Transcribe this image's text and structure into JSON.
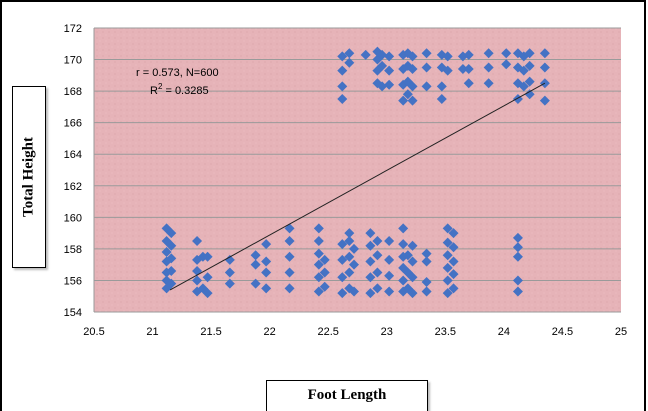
{
  "chart_data": {
    "type": "scatter",
    "xlabel": "Foot Length",
    "ylabel": "Total Height",
    "xlim": [
      20.5,
      25
    ],
    "ylim": [
      154,
      172
    ],
    "xticks": [
      "20.5",
      "21",
      "21.5",
      "22",
      "22.5",
      "23",
      "23.5",
      "24",
      "24.5",
      "25"
    ],
    "yticks": [
      "154",
      "156",
      "158",
      "160",
      "162",
      "164",
      "166",
      "168",
      "170",
      "172"
    ],
    "grid": "horizontal",
    "marker_color": "#4472c4",
    "plot_background": "#e6b3b8",
    "annotation_line1": "r = 0.573, N=600",
    "annotation_line2_prefix": "R",
    "annotation_line2_sup": "2",
    "annotation_line2_suffix": " = 0.3285",
    "trendline": {
      "x": [
        21.15,
        24.35
      ],
      "y": [
        155.4,
        168.5
      ]
    },
    "series": [
      {
        "points": [
          [
            21.12,
            155.5
          ],
          [
            21.12,
            156.0
          ],
          [
            21.12,
            156.5
          ],
          [
            21.12,
            157.2
          ],
          [
            21.12,
            157.8
          ],
          [
            21.12,
            158.5
          ],
          [
            21.12,
            159.3
          ],
          [
            21.16,
            155.8
          ],
          [
            21.16,
            156.6
          ],
          [
            21.16,
            157.4
          ],
          [
            21.16,
            158.2
          ],
          [
            21.16,
            159.0
          ],
          [
            21.38,
            155.3
          ],
          [
            21.38,
            156.0
          ],
          [
            21.38,
            156.6
          ],
          [
            21.38,
            157.3
          ],
          [
            21.38,
            158.5
          ],
          [
            21.43,
            155.5
          ],
          [
            21.43,
            157.5
          ],
          [
            21.47,
            155.2
          ],
          [
            21.47,
            156.2
          ],
          [
            21.47,
            157.5
          ],
          [
            21.66,
            155.8
          ],
          [
            21.66,
            156.5
          ],
          [
            21.66,
            157.3
          ],
          [
            21.88,
            155.8
          ],
          [
            21.88,
            157.0
          ],
          [
            21.88,
            157.6
          ],
          [
            21.97,
            155.5
          ],
          [
            21.97,
            156.5
          ],
          [
            21.97,
            157.2
          ],
          [
            21.97,
            158.3
          ],
          [
            22.17,
            155.5
          ],
          [
            22.17,
            156.5
          ],
          [
            22.17,
            157.5
          ],
          [
            22.17,
            158.5
          ],
          [
            22.17,
            159.3
          ],
          [
            22.42,
            155.3
          ],
          [
            22.42,
            156.2
          ],
          [
            22.42,
            157.0
          ],
          [
            22.42,
            157.7
          ],
          [
            22.42,
            158.5
          ],
          [
            22.42,
            159.3
          ],
          [
            22.47,
            155.6
          ],
          [
            22.47,
            156.5
          ],
          [
            22.47,
            157.3
          ],
          [
            22.62,
            155.2
          ],
          [
            22.62,
            156.2
          ],
          [
            22.62,
            157.3
          ],
          [
            22.62,
            158.3
          ],
          [
            22.68,
            155.5
          ],
          [
            22.68,
            156.5
          ],
          [
            22.68,
            157.5
          ],
          [
            22.68,
            158.5
          ],
          [
            22.68,
            159.0
          ],
          [
            22.72,
            155.3
          ],
          [
            22.72,
            157.0
          ],
          [
            22.72,
            158.0
          ],
          [
            22.86,
            155.2
          ],
          [
            22.86,
            156.2
          ],
          [
            22.86,
            157.2
          ],
          [
            22.86,
            158.2
          ],
          [
            22.86,
            159.0
          ],
          [
            22.92,
            155.5
          ],
          [
            22.92,
            156.5
          ],
          [
            22.92,
            157.6
          ],
          [
            22.92,
            158.5
          ],
          [
            23.02,
            155.3
          ],
          [
            23.02,
            156.3
          ],
          [
            23.02,
            157.3
          ],
          [
            23.02,
            158.5
          ],
          [
            23.14,
            155.3
          ],
          [
            23.14,
            156.0
          ],
          [
            23.14,
            156.8
          ],
          [
            23.14,
            157.5
          ],
          [
            23.14,
            158.3
          ],
          [
            23.14,
            159.3
          ],
          [
            23.18,
            155.5
          ],
          [
            23.18,
            156.5
          ],
          [
            23.18,
            157.6
          ],
          [
            23.22,
            155.2
          ],
          [
            23.22,
            156.2
          ],
          [
            23.22,
            157.2
          ],
          [
            23.22,
            158.2
          ],
          [
            23.34,
            155.3
          ],
          [
            23.34,
            155.9
          ],
          [
            23.34,
            157.2
          ],
          [
            23.34,
            157.7
          ],
          [
            23.52,
            155.2
          ],
          [
            23.52,
            156.0
          ],
          [
            23.52,
            156.8
          ],
          [
            23.52,
            157.6
          ],
          [
            23.52,
            158.4
          ],
          [
            23.52,
            159.3
          ],
          [
            23.57,
            155.5
          ],
          [
            23.57,
            156.4
          ],
          [
            23.57,
            157.2
          ],
          [
            23.57,
            158.1
          ],
          [
            23.57,
            159.0
          ],
          [
            24.12,
            155.3
          ],
          [
            24.12,
            156.0
          ],
          [
            24.12,
            157.5
          ],
          [
            24.12,
            158.1
          ],
          [
            24.12,
            158.7
          ],
          [
            22.62,
            167.5
          ],
          [
            22.62,
            168.3
          ],
          [
            22.62,
            169.3
          ],
          [
            22.62,
            170.2
          ],
          [
            22.68,
            169.8
          ],
          [
            22.68,
            170.4
          ],
          [
            22.82,
            170.3
          ],
          [
            22.92,
            168.5
          ],
          [
            22.92,
            169.3
          ],
          [
            22.92,
            170.0
          ],
          [
            22.92,
            170.5
          ],
          [
            22.96,
            168.3
          ],
          [
            22.96,
            169.6
          ],
          [
            22.96,
            170.3
          ],
          [
            23.02,
            168.4
          ],
          [
            23.02,
            169.3
          ],
          [
            23.02,
            170.2
          ],
          [
            23.14,
            167.4
          ],
          [
            23.14,
            168.4
          ],
          [
            23.14,
            169.4
          ],
          [
            23.14,
            170.3
          ],
          [
            23.18,
            167.8
          ],
          [
            23.18,
            168.6
          ],
          [
            23.18,
            169.6
          ],
          [
            23.18,
            170.4
          ],
          [
            23.22,
            167.4
          ],
          [
            23.22,
            168.3
          ],
          [
            23.22,
            169.4
          ],
          [
            23.22,
            170.2
          ],
          [
            23.34,
            168.3
          ],
          [
            23.34,
            169.5
          ],
          [
            23.34,
            170.4
          ],
          [
            23.47,
            167.5
          ],
          [
            23.47,
            168.3
          ],
          [
            23.47,
            169.5
          ],
          [
            23.47,
            170.3
          ],
          [
            23.52,
            169.3
          ],
          [
            23.52,
            170.2
          ],
          [
            23.65,
            169.4
          ],
          [
            23.65,
            170.2
          ],
          [
            23.7,
            168.5
          ],
          [
            23.7,
            169.4
          ],
          [
            23.7,
            170.3
          ],
          [
            23.87,
            168.5
          ],
          [
            23.87,
            169.5
          ],
          [
            23.87,
            170.4
          ],
          [
            24.02,
            169.7
          ],
          [
            24.02,
            170.4
          ],
          [
            24.12,
            167.5
          ],
          [
            24.12,
            168.5
          ],
          [
            24.12,
            169.5
          ],
          [
            24.12,
            170.4
          ],
          [
            24.17,
            168.3
          ],
          [
            24.17,
            169.3
          ],
          [
            24.17,
            170.2
          ],
          [
            24.22,
            167.8
          ],
          [
            24.22,
            168.6
          ],
          [
            24.22,
            169.6
          ],
          [
            24.22,
            170.4
          ],
          [
            24.35,
            167.4
          ],
          [
            24.35,
            168.5
          ],
          [
            24.35,
            169.5
          ],
          [
            24.35,
            170.4
          ]
        ]
      }
    ]
  }
}
